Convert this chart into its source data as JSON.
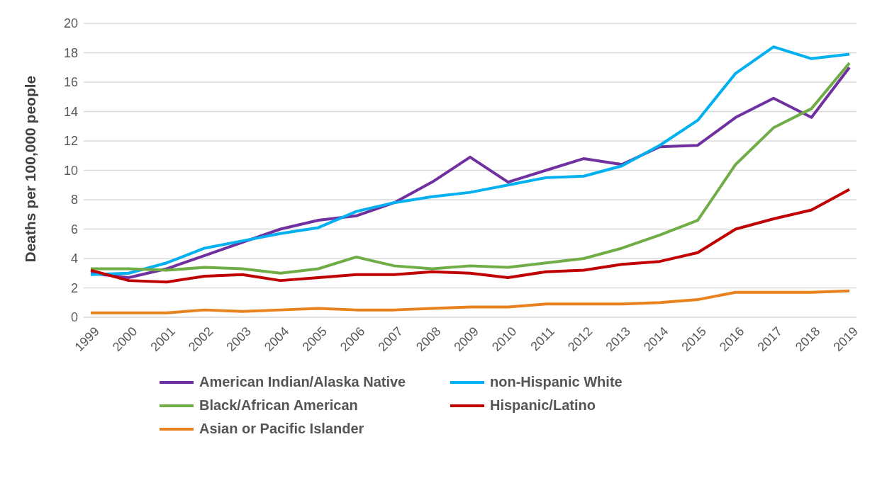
{
  "chart_data": {
    "type": "line",
    "ylabel": "Deaths per 100,000 people",
    "categories": [
      "1999",
      "2000",
      "2001",
      "2002",
      "2003",
      "2004",
      "2005",
      "2006",
      "2007",
      "2008",
      "2009",
      "2010",
      "2011",
      "2012",
      "2013",
      "2014",
      "2015",
      "2016",
      "2017",
      "2018",
      "2019"
    ],
    "series": [
      {
        "name": "American Indian/Alaska Native",
        "color": "#7030a0",
        "values": [
          3.0,
          2.7,
          3.3,
          4.2,
          5.1,
          6.0,
          6.6,
          6.9,
          7.8,
          9.2,
          10.9,
          9.2,
          10.0,
          10.8,
          10.4,
          11.6,
          11.7,
          13.6,
          14.9,
          13.6,
          17.0
        ]
      },
      {
        "name": "non-Hispanic White",
        "color": "#00b0f0",
        "values": [
          2.9,
          3.0,
          3.7,
          4.7,
          5.2,
          5.7,
          6.1,
          7.2,
          7.8,
          8.2,
          8.5,
          9.0,
          9.5,
          9.6,
          10.3,
          11.7,
          13.4,
          16.6,
          18.4,
          17.6,
          17.9
        ]
      },
      {
        "name": "Black/African American",
        "color": "#70ad47",
        "values": [
          3.3,
          3.3,
          3.2,
          3.4,
          3.3,
          3.0,
          3.3,
          4.1,
          3.5,
          3.3,
          3.5,
          3.4,
          3.7,
          4.0,
          4.7,
          5.6,
          6.6,
          10.4,
          12.9,
          14.2,
          17.3
        ]
      },
      {
        "name": "Hispanic/Latino",
        "color": "#c00000",
        "values": [
          3.2,
          2.5,
          2.4,
          2.8,
          2.9,
          2.5,
          2.7,
          2.9,
          2.9,
          3.1,
          3.0,
          2.7,
          3.1,
          3.2,
          3.6,
          3.8,
          4.4,
          6.0,
          6.7,
          7.3,
          8.7
        ]
      },
      {
        "name": "Asian or Pacific Islander",
        "color": "#e8821e",
        "values": [
          0.3,
          0.3,
          0.3,
          0.5,
          0.4,
          0.5,
          0.6,
          0.5,
          0.5,
          0.6,
          0.7,
          0.7,
          0.9,
          0.9,
          0.9,
          1.0,
          1.2,
          1.7,
          1.7,
          1.7,
          1.8
        ]
      }
    ],
    "ylim": [
      0,
      20
    ],
    "yticks": [
      0,
      2,
      4,
      6,
      8,
      10,
      12,
      14,
      16,
      18,
      20
    ],
    "grid": "y",
    "legend": "bottom",
    "marker": "none",
    "line_style": "solid"
  }
}
